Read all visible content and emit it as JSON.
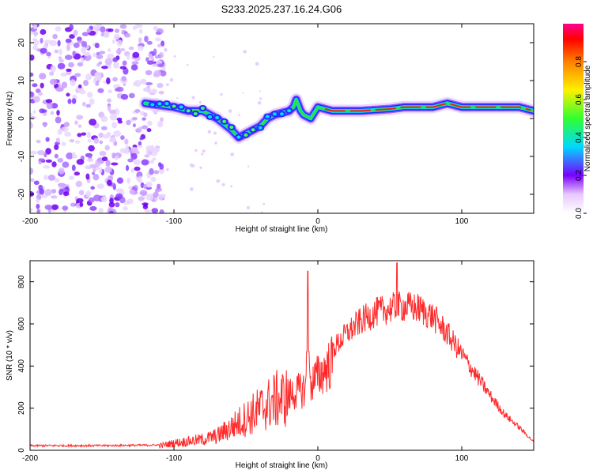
{
  "chart_data": [
    {
      "type": "heatmap",
      "title": "S233.2025.237.16.24.G06",
      "xlabel": "Height of straight line (km)",
      "ylabel": "Frequency (Hz)",
      "xlim": [
        -200,
        150
      ],
      "ylim": [
        -25,
        25
      ],
      "xticks": [
        "-200",
        "-100",
        "0",
        "100"
      ],
      "yticks": [
        "20",
        "10",
        "0",
        "-10",
        "-20"
      ],
      "colorbar": {
        "label": "Normalized spectral amplitude",
        "range": [
          0,
          1
        ],
        "ticks": [
          "0.0",
          "0.2",
          "0.4",
          "0.6",
          "0.8"
        ]
      },
      "ridge": {
        "x": [
          -120,
          -110,
          -100,
          -90,
          -80,
          -70,
          -60,
          -55,
          -50,
          -45,
          -40,
          -35,
          -30,
          -25,
          -20,
          -17,
          -15,
          -12,
          -10,
          -5,
          0,
          10,
          30,
          50,
          60,
          70,
          80,
          90,
          100,
          110,
          120,
          130,
          140,
          150
        ],
        "y": [
          4,
          3.5,
          3,
          2,
          2,
          0,
          -3,
          -5,
          -4,
          -3,
          -2,
          0,
          1,
          1.5,
          2,
          3,
          5,
          2,
          1,
          0,
          3,
          2,
          2,
          2.5,
          3,
          3,
          3,
          4,
          3,
          3,
          3,
          3,
          3,
          2
        ]
      }
    },
    {
      "type": "line",
      "xlabel": "Height of straight line (km)",
      "ylabel": "SNR (10 * v/v)",
      "xlim": [
        -200,
        150
      ],
      "ylim": [
        0,
        900
      ],
      "xticks": [
        "-200",
        "-100",
        "0",
        "100"
      ],
      "yticks": [
        "0",
        "200",
        "400",
        "600",
        "800"
      ],
      "series": [
        {
          "name": "SNR",
          "color": "#ff2a2a",
          "envelope": {
            "x": [
              -200,
              -150,
              -110,
              -100,
              -90,
              -80,
              -70,
              -60,
              -50,
              -40,
              -30,
              -20,
              -10,
              0,
              10,
              20,
              30,
              40,
              50,
              60,
              70,
              80,
              90,
              100,
              110,
              120,
              130,
              140,
              150
            ],
            "y": [
              22,
              22,
              25,
              40,
              50,
              60,
              80,
              130,
              180,
              230,
              280,
              300,
              330,
              400,
              480,
              560,
              620,
              660,
              680,
              690,
              680,
              640,
              560,
              460,
              360,
              260,
              170,
              110,
              40
            ]
          },
          "spikes": [
            {
              "x": -7,
              "y": 850
            },
            {
              "x": 55,
              "y": 890
            }
          ]
        }
      ]
    }
  ]
}
